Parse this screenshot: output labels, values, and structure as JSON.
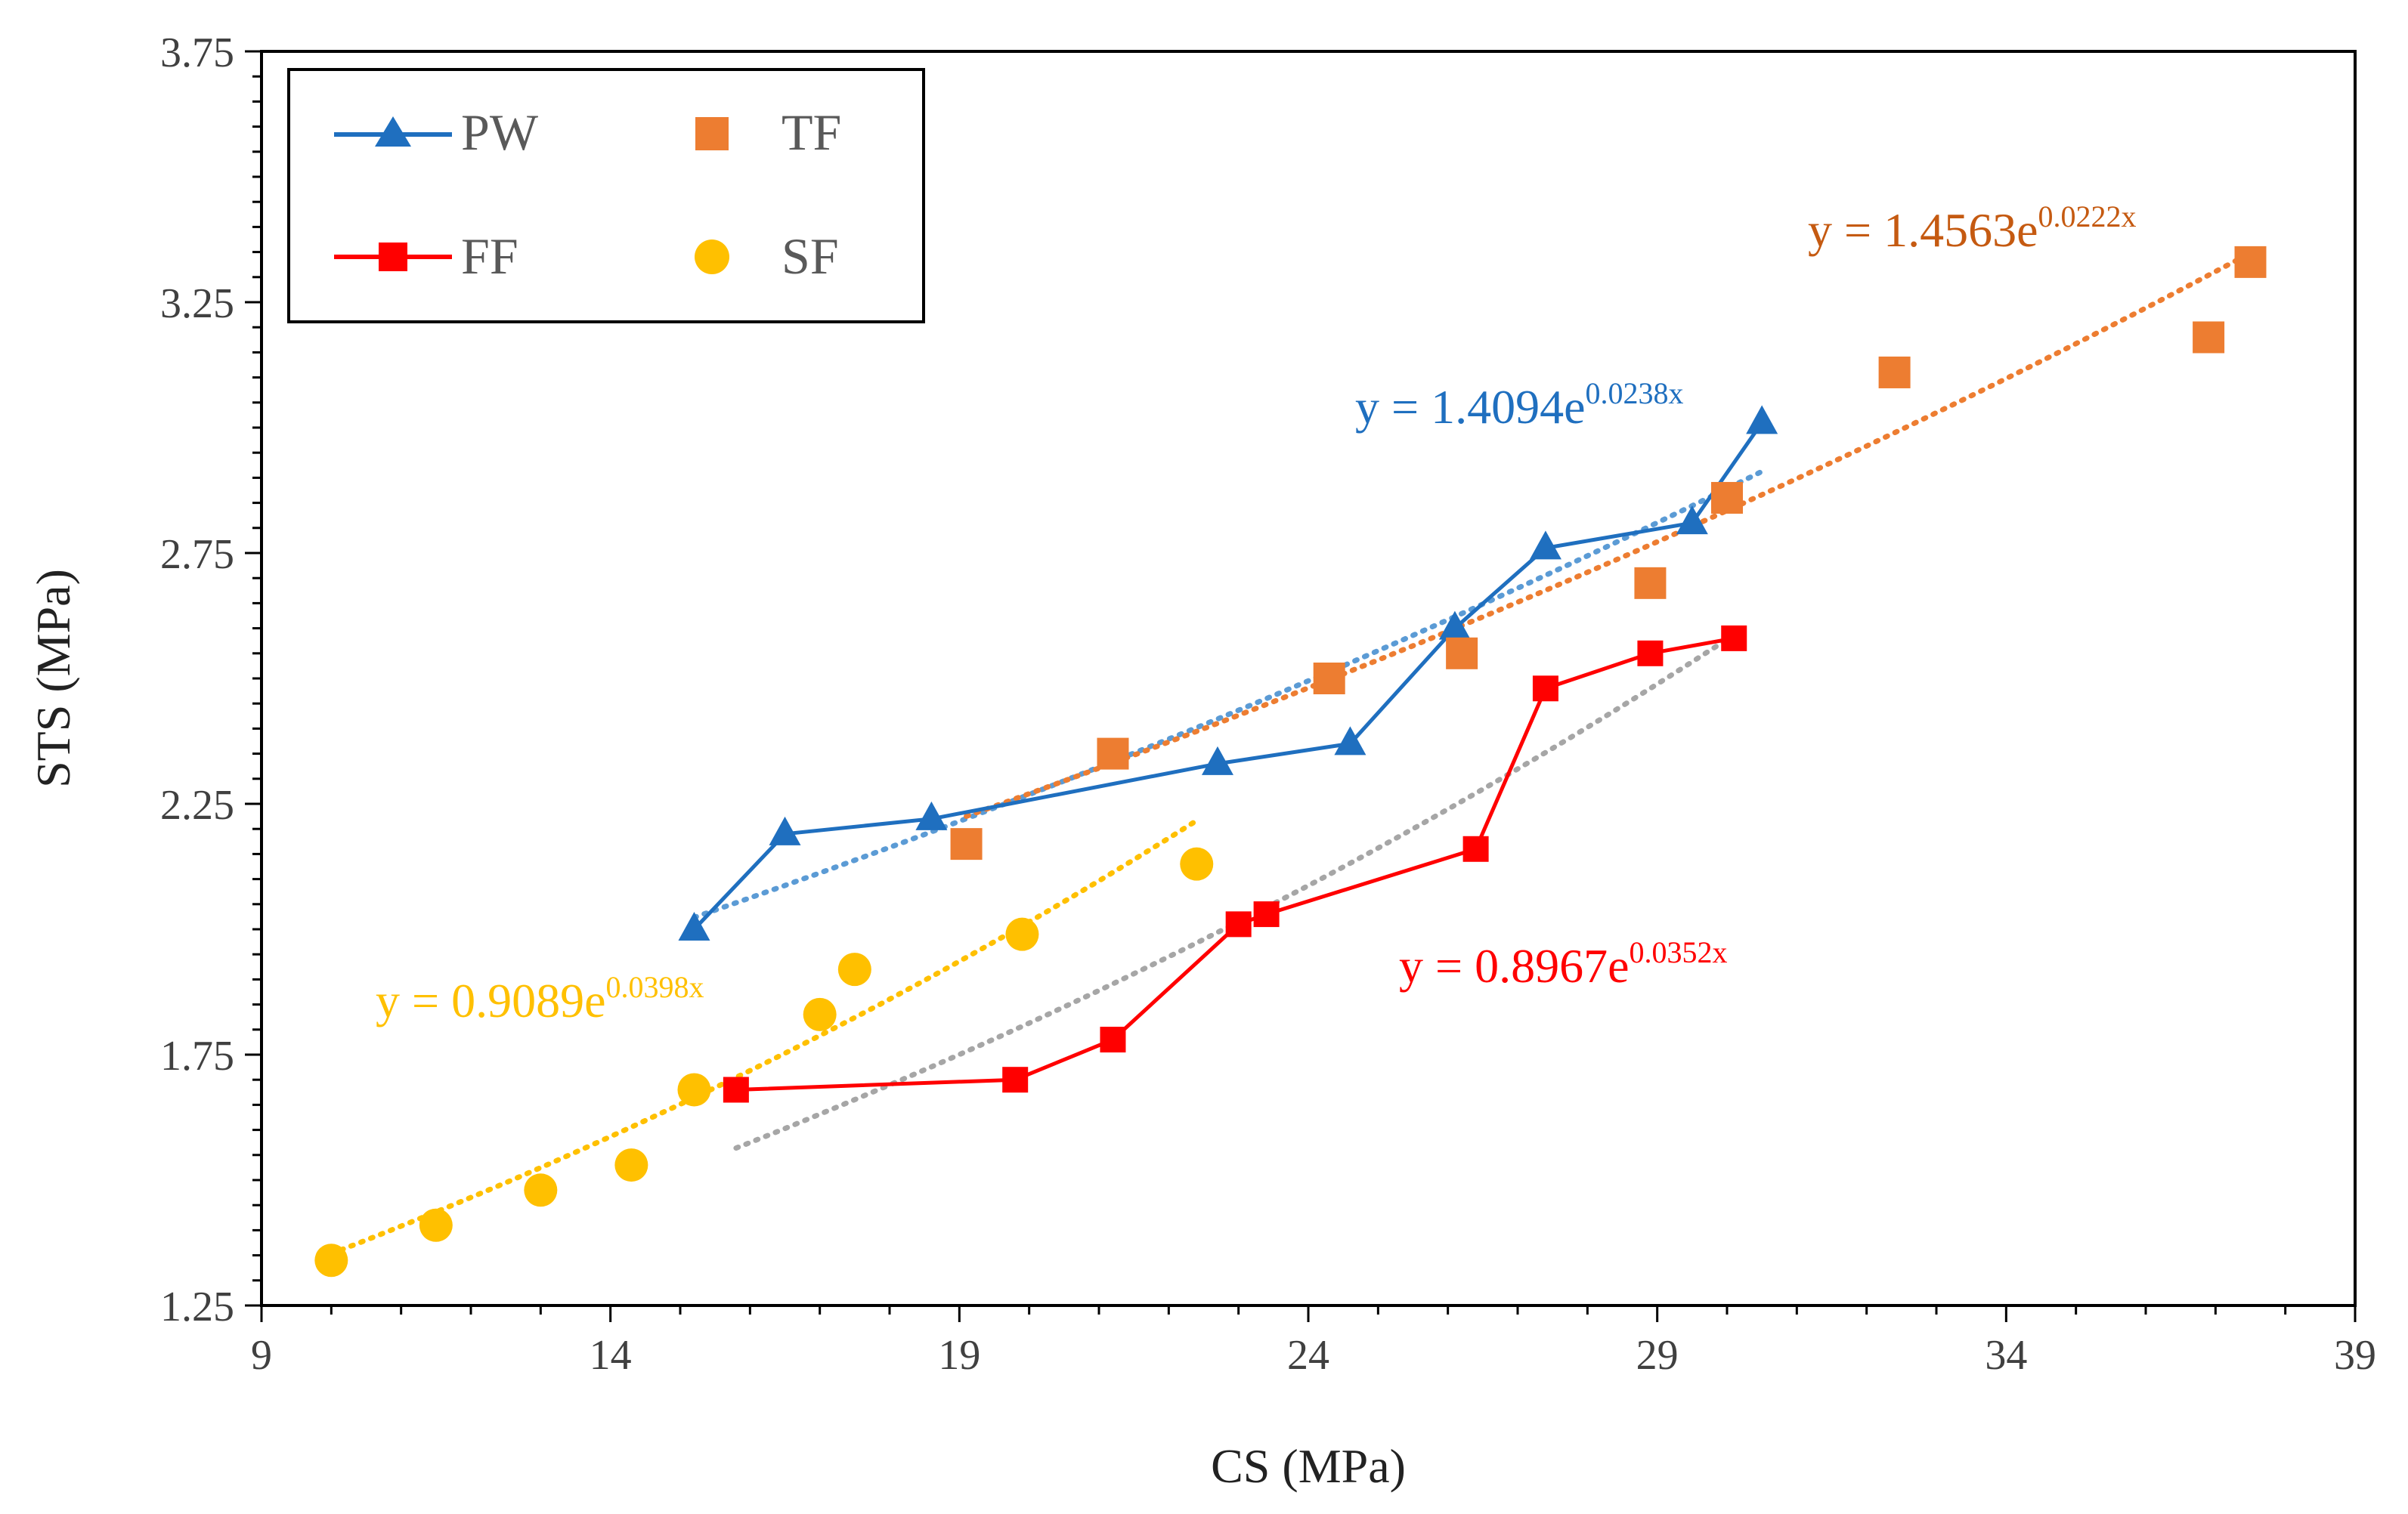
{
  "chart_data": {
    "type": "scatter",
    "xlabel": "CS (MPa)",
    "ylabel": "STS (MPa)",
    "xlim": [
      9,
      39
    ],
    "ylim": [
      1.25,
      3.75
    ],
    "x_ticks": [
      "9",
      "14",
      "19",
      "24",
      "29",
      "34",
      "39"
    ],
    "y_ticks": [
      "1.25",
      "1.75",
      "2.25",
      "2.75",
      "3.25",
      "3.75"
    ],
    "legend_position": "top-left",
    "series": [
      {
        "name": "PW",
        "marker": "triangle",
        "connected": true,
        "color": "#1F6FBF",
        "points": [
          [
            15.2,
            2.0
          ],
          [
            16.5,
            2.19
          ],
          [
            18.6,
            2.22
          ],
          [
            22.7,
            2.33
          ],
          [
            24.6,
            2.37
          ],
          [
            26.1,
            2.6
          ],
          [
            27.4,
            2.76
          ],
          [
            29.5,
            2.81
          ],
          [
            30.5,
            3.01
          ]
        ],
        "trendline": {
          "equation_base": "y = 1.4094e",
          "equation_exp": "0.0238x",
          "a": 1.4094,
          "b": 0.0238,
          "x_range": [
            15.2,
            30.5
          ],
          "color": "#5B9BD5"
        }
      },
      {
        "name": "TF",
        "marker": "square",
        "connected": false,
        "color": "#ED7D31",
        "points": [
          [
            19.1,
            2.17
          ],
          [
            21.2,
            2.35
          ],
          [
            24.3,
            2.5
          ],
          [
            26.2,
            2.55
          ],
          [
            28.9,
            2.69
          ],
          [
            30.0,
            2.86
          ],
          [
            32.4,
            3.11
          ],
          [
            36.9,
            3.18
          ],
          [
            37.5,
            3.33
          ]
        ],
        "trendline": {
          "equation_base": "y = 1.4563e",
          "equation_exp": "0.0222x",
          "a": 1.4563,
          "b": 0.0222,
          "x_range": [
            19.1,
            37.5
          ],
          "color": "#ED7D31"
        }
      },
      {
        "name": "FF",
        "marker": "square",
        "connected": true,
        "color": "#FF0000",
        "points": [
          [
            15.8,
            1.68
          ],
          [
            19.8,
            1.7
          ],
          [
            21.2,
            1.78
          ],
          [
            23.0,
            2.01
          ],
          [
            23.4,
            2.03
          ],
          [
            26.4,
            2.16
          ],
          [
            27.4,
            2.48
          ],
          [
            28.9,
            2.55
          ],
          [
            30.1,
            2.58
          ]
        ],
        "trendline": {
          "equation_base": "y = 0.8967e",
          "equation_exp": "0.0352x",
          "a": 0.8967,
          "b": 0.0352,
          "x_range": [
            15.8,
            30.1
          ],
          "color": "#A6A6A6"
        }
      },
      {
        "name": "SF",
        "marker": "circle",
        "connected": false,
        "color": "#FFC000",
        "points": [
          [
            10.0,
            1.34
          ],
          [
            11.5,
            1.41
          ],
          [
            13.0,
            1.48
          ],
          [
            14.3,
            1.53
          ],
          [
            15.2,
            1.68
          ],
          [
            17.0,
            1.83
          ],
          [
            17.5,
            1.92
          ],
          [
            19.9,
            1.99
          ],
          [
            22.4,
            2.13
          ]
        ],
        "trendline": {
          "equation_base": "y = 0.9089e",
          "equation_exp": "0.0398x",
          "a": 0.9089,
          "b": 0.0398,
          "x_range": [
            10.0,
            22.4
          ],
          "color": "#FFC000"
        }
      }
    ]
  }
}
